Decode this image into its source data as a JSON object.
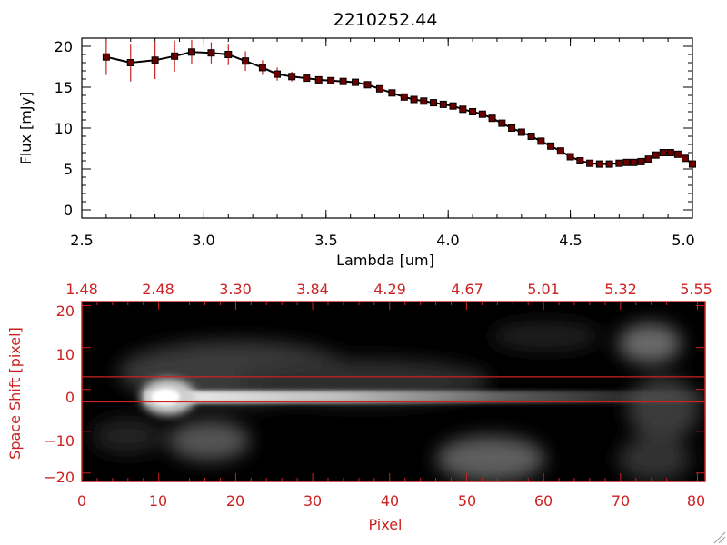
{
  "chart_data": [
    {
      "type": "line",
      "title": "2210252.44",
      "xlabel": "Lambda [um]",
      "ylabel": "Flux [mJy]",
      "xlim": [
        2.5,
        5.0
      ],
      "ylim": [
        -1,
        21
      ],
      "xticks": [
        2.5,
        3.0,
        3.5,
        4.0,
        4.5,
        5.0
      ],
      "xtick_labels": [
        "2.5",
        "3.0",
        "3.5",
        "4.0",
        "4.5",
        "5.0"
      ],
      "yticks": [
        0,
        5,
        10,
        15,
        20
      ],
      "ytick_labels": [
        "0",
        "5",
        "10",
        "15",
        "20"
      ],
      "colors": {
        "line": "#000000",
        "marker": "#6b0000",
        "errorbar": "#cc2222"
      },
      "series": [
        {
          "name": "spectrum",
          "x": [
            2.6,
            2.7,
            2.8,
            2.88,
            2.95,
            3.03,
            3.1,
            3.17,
            3.24,
            3.3,
            3.36,
            3.42,
            3.47,
            3.52,
            3.57,
            3.62,
            3.67,
            3.72,
            3.77,
            3.82,
            3.86,
            3.9,
            3.94,
            3.98,
            4.02,
            4.06,
            4.1,
            4.14,
            4.18,
            4.22,
            4.26,
            4.3,
            4.34,
            4.38,
            4.42,
            4.46,
            4.5,
            4.54,
            4.58,
            4.62,
            4.66,
            4.7,
            4.73,
            4.76,
            4.79,
            4.82,
            4.85,
            4.88,
            4.91,
            4.94,
            4.97,
            5.0
          ],
          "y": [
            18.7,
            18.0,
            18.3,
            18.8,
            19.3,
            19.2,
            19.0,
            18.2,
            17.4,
            16.6,
            16.3,
            16.1,
            15.9,
            15.8,
            15.7,
            15.6,
            15.3,
            14.8,
            14.3,
            13.8,
            13.5,
            13.3,
            13.1,
            12.9,
            12.7,
            12.3,
            12.0,
            11.7,
            11.2,
            10.6,
            10.0,
            9.5,
            9.0,
            8.4,
            7.8,
            7.2,
            6.5,
            6.0,
            5.7,
            5.6,
            5.6,
            5.7,
            5.8,
            5.8,
            5.9,
            6.2,
            6.7,
            7.0,
            7.0,
            6.8,
            6.3,
            5.6
          ],
          "err": [
            2.2,
            2.3,
            2.3,
            1.9,
            1.5,
            1.3,
            1.3,
            1.2,
            0.9,
            0.8,
            0.6,
            0,
            0,
            0,
            0,
            0,
            0,
            0,
            0,
            0,
            0,
            0,
            0,
            0,
            0,
            0,
            0,
            0,
            0,
            0,
            0,
            0,
            0,
            0,
            0,
            0,
            0,
            0,
            0,
            0,
            0,
            0,
            0,
            0,
            0,
            0,
            0,
            0,
            0,
            0,
            0,
            0.5
          ]
        }
      ]
    },
    {
      "type": "heatmap",
      "xlabel": "Pixel",
      "ylabel": "Space Shift [pixel]",
      "xlim": [
        0,
        81
      ],
      "ylim": [
        -22,
        21
      ],
      "xticks": [
        0,
        10,
        20,
        30,
        40,
        50,
        60,
        70,
        80
      ],
      "xtick_labels": [
        "0",
        "10",
        "20",
        "30",
        "40",
        "50",
        "60",
        "70",
        "80"
      ],
      "yticks": [
        -20,
        -10,
        0,
        10,
        20
      ],
      "ytick_labels": [
        "−20",
        "−10",
        "0",
        "10",
        "20"
      ],
      "top_axis_label_positions": [
        0,
        10,
        20,
        30,
        40,
        50,
        60,
        70,
        80
      ],
      "top_axis_labels": [
        "1.48",
        "2.48",
        "3.30",
        "3.84",
        "4.29",
        "4.67",
        "5.01",
        "5.32",
        "5.55"
      ],
      "extraction_lines_y": [
        3,
        -3
      ],
      "colors": {
        "axis": "#cc2222",
        "background": "#000000",
        "extraction_line": "#cc2222"
      }
    }
  ]
}
